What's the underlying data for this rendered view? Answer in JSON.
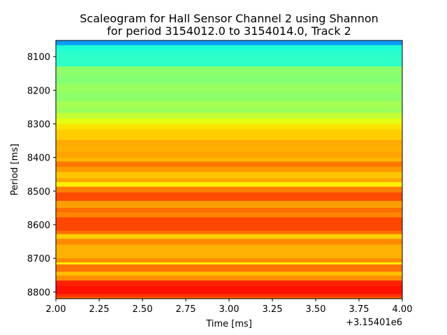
{
  "chart_data": {
    "type": "heatmap",
    "title_line1": "Scaleogram for Hall Sensor Channel 2 using Shannon",
    "title_line2": "for period 3154012.0 to 3154014.0, Track 2",
    "xlabel": "Time [ms]",
    "ylabel": "Period [ms]",
    "x_offset_label": "+3.15401e6",
    "xlim": [
      2.0,
      4.0
    ],
    "ylim": [
      8820,
      8052
    ],
    "x_ticks": [
      2.0,
      2.25,
      2.5,
      2.75,
      3.0,
      3.25,
      3.5,
      3.75,
      4.0
    ],
    "x_tick_labels": [
      "2.00",
      "2.25",
      "2.50",
      "2.75",
      "3.00",
      "3.25",
      "3.50",
      "3.75",
      "4.00"
    ],
    "y_ticks": [
      8100,
      8200,
      8300,
      8400,
      8500,
      8600,
      8700,
      8800
    ],
    "y_tick_labels": [
      "8100",
      "8200",
      "8300",
      "8400",
      "8500",
      "8600",
      "8700",
      "8800"
    ],
    "colormap": "jet",
    "grid": false,
    "bands": [
      {
        "from": 8052,
        "to": 8066,
        "color": "#0a9cff"
      },
      {
        "from": 8066,
        "to": 8083,
        "color": "#1fffd6"
      },
      {
        "from": 8083,
        "to": 8100,
        "color": "#28ffcd"
      },
      {
        "from": 8100,
        "to": 8129,
        "color": "#2dffc8"
      },
      {
        "from": 8129,
        "to": 8155,
        "color": "#8cff6a"
      },
      {
        "from": 8155,
        "to": 8182,
        "color": "#84ff72"
      },
      {
        "from": 8182,
        "to": 8208,
        "color": "#97ff60"
      },
      {
        "from": 8208,
        "to": 8232,
        "color": "#8cff6a"
      },
      {
        "from": 8232,
        "to": 8253,
        "color": "#a3ff54"
      },
      {
        "from": 8253,
        "to": 8267,
        "color": "#9aff5d"
      },
      {
        "from": 8267,
        "to": 8284,
        "color": "#c2ff35"
      },
      {
        "from": 8284,
        "to": 8300,
        "color": "#e4ff13"
      },
      {
        "from": 8300,
        "to": 8317,
        "color": "#fae300"
      },
      {
        "from": 8317,
        "to": 8348,
        "color": "#ffcd00"
      },
      {
        "from": 8348,
        "to": 8366,
        "color": "#ffaa00"
      },
      {
        "from": 8366,
        "to": 8382,
        "color": "#ffb000"
      },
      {
        "from": 8382,
        "to": 8402,
        "color": "#ffa400"
      },
      {
        "from": 8402,
        "to": 8412,
        "color": "#ffb900"
      },
      {
        "from": 8412,
        "to": 8428,
        "color": "#ff7800"
      },
      {
        "from": 8428,
        "to": 8443,
        "color": "#ff9a00"
      },
      {
        "from": 8443,
        "to": 8462,
        "color": "#ffc500"
      },
      {
        "from": 8462,
        "to": 8473,
        "color": "#ffa600"
      },
      {
        "from": 8473,
        "to": 8487,
        "color": "#fff000"
      },
      {
        "from": 8487,
        "to": 8504,
        "color": "#ff7e00"
      },
      {
        "from": 8504,
        "to": 8529,
        "color": "#ff4a00"
      },
      {
        "from": 8529,
        "to": 8550,
        "color": "#ff9e00"
      },
      {
        "from": 8550,
        "to": 8563,
        "color": "#ff6c00"
      },
      {
        "from": 8563,
        "to": 8578,
        "color": "#ff8600"
      },
      {
        "from": 8578,
        "to": 8618,
        "color": "#ff4600"
      },
      {
        "from": 8618,
        "to": 8628,
        "color": "#ff7000"
      },
      {
        "from": 8628,
        "to": 8642,
        "color": "#ffcd00"
      },
      {
        "from": 8642,
        "to": 8659,
        "color": "#ff8a00"
      },
      {
        "from": 8659,
        "to": 8700,
        "color": "#ffb000"
      },
      {
        "from": 8700,
        "to": 8712,
        "color": "#ff8c00"
      },
      {
        "from": 8712,
        "to": 8718,
        "color": "#fff200"
      },
      {
        "from": 8718,
        "to": 8740,
        "color": "#ff7400"
      },
      {
        "from": 8740,
        "to": 8751,
        "color": "#ffc000"
      },
      {
        "from": 8751,
        "to": 8766,
        "color": "#ff8e00"
      },
      {
        "from": 8766,
        "to": 8782,
        "color": "#ff2000"
      },
      {
        "from": 8782,
        "to": 8806,
        "color": "#ff1000"
      },
      {
        "from": 8806,
        "to": 8814,
        "color": "#ff3000"
      },
      {
        "from": 8814,
        "to": 8820,
        "color": "#ff5800"
      }
    ]
  }
}
